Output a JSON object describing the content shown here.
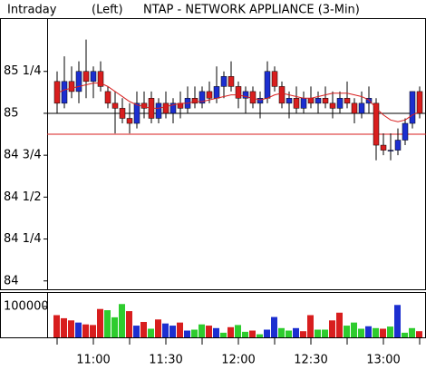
{
  "chart_data": [
    {
      "type": "candlestick",
      "label": "Intraday",
      "side": "(Left)",
      "title": "NTAP - NETWORK APPLIANCE  (3-Min)",
      "categories": [
        null,
        null,
        null,
        null,
        null,
        "11:00",
        null,
        null,
        null,
        null,
        null,
        null,
        null,
        null,
        null,
        "11:30",
        null,
        null,
        null,
        null,
        null,
        null,
        null,
        null,
        null,
        "12:00",
        null,
        null,
        null,
        null,
        null,
        null,
        null,
        null,
        null,
        "12:30",
        null,
        null,
        null,
        null,
        null,
        null,
        null,
        null,
        null,
        "13:00",
        null,
        null,
        null,
        null,
        null
      ],
      "open": [
        85.19,
        85.06,
        85.19,
        85.13,
        85.25,
        85.19,
        85.25,
        85.13,
        85.06,
        85.03,
        84.97,
        84.94,
        85.06,
        85.09,
        84.97,
        85.06,
        85.0,
        85.06,
        85.03,
        85.09,
        85.06,
        85.13,
        85.09,
        85.16,
        85.22,
        85.16,
        85.09,
        85.13,
        85.06,
        85.09,
        85.25,
        85.16,
        85.06,
        85.09,
        85.03,
        85.09,
        85.06,
        85.09,
        85.06,
        85.03,
        85.09,
        85.06,
        85.0,
        85.06,
        85.06,
        84.81,
        84.78,
        84.78,
        84.84,
        84.94,
        85.13
      ],
      "high": [
        85.25,
        85.34,
        85.28,
        85.31,
        85.44,
        85.28,
        85.31,
        85.16,
        85.13,
        85.09,
        85.06,
        85.13,
        85.13,
        85.13,
        85.09,
        85.13,
        85.09,
        85.13,
        85.16,
        85.16,
        85.16,
        85.19,
        85.28,
        85.25,
        85.31,
        85.19,
        85.16,
        85.16,
        85.13,
        85.31,
        85.28,
        85.19,
        85.13,
        85.16,
        85.13,
        85.16,
        85.13,
        85.16,
        85.13,
        85.13,
        85.19,
        85.09,
        85.13,
        85.16,
        85.09,
        84.88,
        84.88,
        84.91,
        84.97,
        85.13,
        85.16
      ],
      "low": [
        85.0,
        85.03,
        85.09,
        85.06,
        85.09,
        85.09,
        85.13,
        85.03,
        84.88,
        84.94,
        84.88,
        84.91,
        84.97,
        84.94,
        84.94,
        84.97,
        84.94,
        84.97,
        85.0,
        85.03,
        85.03,
        85.06,
        85.06,
        85.09,
        85.13,
        85.03,
        85.0,
        85.03,
        84.97,
        85.06,
        85.13,
        85.03,
        84.97,
        85.0,
        85.0,
        85.03,
        85.0,
        85.03,
        84.97,
        85.0,
        85.03,
        84.94,
        84.97,
        85.0,
        84.72,
        84.75,
        84.72,
        84.75,
        84.81,
        84.91,
        84.97
      ],
      "close": [
        85.06,
        85.19,
        85.13,
        85.25,
        85.19,
        85.25,
        85.16,
        85.06,
        85.03,
        84.97,
        84.94,
        85.06,
        85.03,
        84.97,
        85.06,
        85.0,
        85.06,
        85.03,
        85.09,
        85.06,
        85.13,
        85.09,
        85.16,
        85.22,
        85.16,
        85.09,
        85.13,
        85.06,
        85.09,
        85.25,
        85.16,
        85.06,
        85.09,
        85.03,
        85.09,
        85.06,
        85.09,
        85.06,
        85.03,
        85.09,
        85.06,
        85.0,
        85.06,
        85.09,
        84.81,
        84.78,
        84.78,
        84.84,
        84.94,
        85.13,
        85.0
      ],
      "ma": [
        85.12,
        85.14,
        85.15,
        85.16,
        85.17,
        85.18,
        85.18,
        85.16,
        85.13,
        85.1,
        85.07,
        85.05,
        85.04,
        85.03,
        85.03,
        85.04,
        85.05,
        85.06,
        85.06,
        85.07,
        85.07,
        85.08,
        85.09,
        85.1,
        85.11,
        85.11,
        85.1,
        85.09,
        85.08,
        85.09,
        85.11,
        85.12,
        85.11,
        85.1,
        85.09,
        85.09,
        85.1,
        85.11,
        85.12,
        85.12,
        85.12,
        85.11,
        85.1,
        85.08,
        85.03,
        84.99,
        84.96,
        84.95,
        84.96,
        84.99,
        85.01
      ],
      "up_color": "#1c2fd0",
      "down_color": "#d81e1e",
      "ma_color": "#d81e1e",
      "reference_lines": [
        {
          "value": 85,
          "color": "#000000"
        },
        {
          "value": 84.875,
          "color": "#d81e1e"
        }
      ],
      "ylim": [
        83.95,
        85.557
      ],
      "yticks": [
        84,
        {
          "value": 84.25,
          "label": "84 1/4"
        },
        {
          "value": 84.5,
          "label": "84 1/2"
        },
        {
          "value": 84.75,
          "label": "84 3/4"
        },
        85,
        {
          "value": 85.25,
          "label": "85 1/4"
        }
      ]
    },
    {
      "type": "bar",
      "values": [
        72000,
        62000,
        55000,
        48000,
        42000,
        40000,
        92000,
        88000,
        65000,
        108000,
        85000,
        38000,
        50000,
        28000,
        58000,
        45000,
        38000,
        48000,
        22000,
        25000,
        42000,
        38000,
        30000,
        15000,
        33000,
        40000,
        18000,
        22000,
        10000,
        25000,
        66000,
        30000,
        22000,
        30000,
        20000,
        72000,
        25000,
        25000,
        55000,
        80000,
        38000,
        48000,
        28000,
        36000,
        30000,
        28000,
        35000,
        105000,
        15000,
        30000,
        20000
      ],
      "colors": [
        "#d81e1e",
        "#d81e1e",
        "#d81e1e",
        "#1c2fd0",
        "#d81e1e",
        "#d81e1e",
        "#d81e1e",
        "#2ecc2e",
        "#2ecc2e",
        "#2ecc2e",
        "#d81e1e",
        "#1c2fd0",
        "#d81e1e",
        "#2ecc2e",
        "#d81e1e",
        "#1c2fd0",
        "#1c2fd0",
        "#d81e1e",
        "#1c2fd0",
        "#2ecc2e",
        "#2ecc2e",
        "#d81e1e",
        "#1c2fd0",
        "#2ecc2e",
        "#d81e1e",
        "#2ecc2e",
        "#2ecc2e",
        "#d81e1e",
        "#2ecc2e",
        "#1c2fd0",
        "#1c2fd0",
        "#2ecc2e",
        "#2ecc2e",
        "#1c2fd0",
        "#d81e1e",
        "#d81e1e",
        "#2ecc2e",
        "#2ecc2e",
        "#d81e1e",
        "#d81e1e",
        "#2ecc2e",
        "#2ecc2e",
        "#2ecc2e",
        "#1c2fd0",
        "#2ecc2e",
        "#d81e1e",
        "#2ecc2e",
        "#1c2fd0",
        "#2ecc2e",
        "#2ecc2e",
        "#d81e1e"
      ],
      "ylim": [
        0,
        147000
      ],
      "yticks": [
        100000
      ]
    }
  ]
}
